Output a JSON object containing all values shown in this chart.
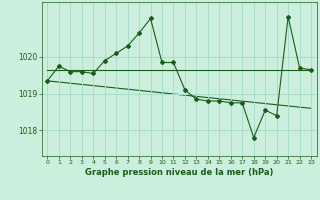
{
  "title": "Graphe pression niveau de la mer (hPa)",
  "bg_color": "#cceedd",
  "line_color": "#1a5c1a",
  "grid_color": "#aaddcc",
  "x_ticks": [
    0,
    1,
    2,
    3,
    4,
    5,
    6,
    7,
    8,
    9,
    10,
    11,
    12,
    13,
    14,
    15,
    16,
    17,
    18,
    19,
    20,
    21,
    22,
    23
  ],
  "y_ticks": [
    1018,
    1019,
    1020
  ],
  "ylim": [
    1017.3,
    1021.5
  ],
  "xlim": [
    -0.5,
    23.5
  ],
  "series": [
    {
      "x": [
        0,
        1,
        2,
        3,
        4,
        5,
        6,
        7,
        8,
        9,
        10,
        11,
        12,
        13,
        14,
        15,
        16,
        17,
        18,
        19,
        20,
        21,
        22,
        23
      ],
      "y": [
        1019.35,
        1019.75,
        1019.6,
        1019.6,
        1019.55,
        1019.9,
        1020.1,
        1020.3,
        1020.65,
        1021.05,
        1019.85,
        1019.85,
        1019.1,
        1018.85,
        1018.8,
        1018.8,
        1018.75,
        1018.75,
        1017.8,
        1018.55,
        1018.4,
        1021.1,
        1019.7,
        1019.65
      ]
    },
    {
      "x": [
        0,
        23
      ],
      "y": [
        1019.65,
        1019.65
      ]
    },
    {
      "x": [
        0,
        23
      ],
      "y": [
        1019.35,
        1018.6
      ]
    }
  ]
}
